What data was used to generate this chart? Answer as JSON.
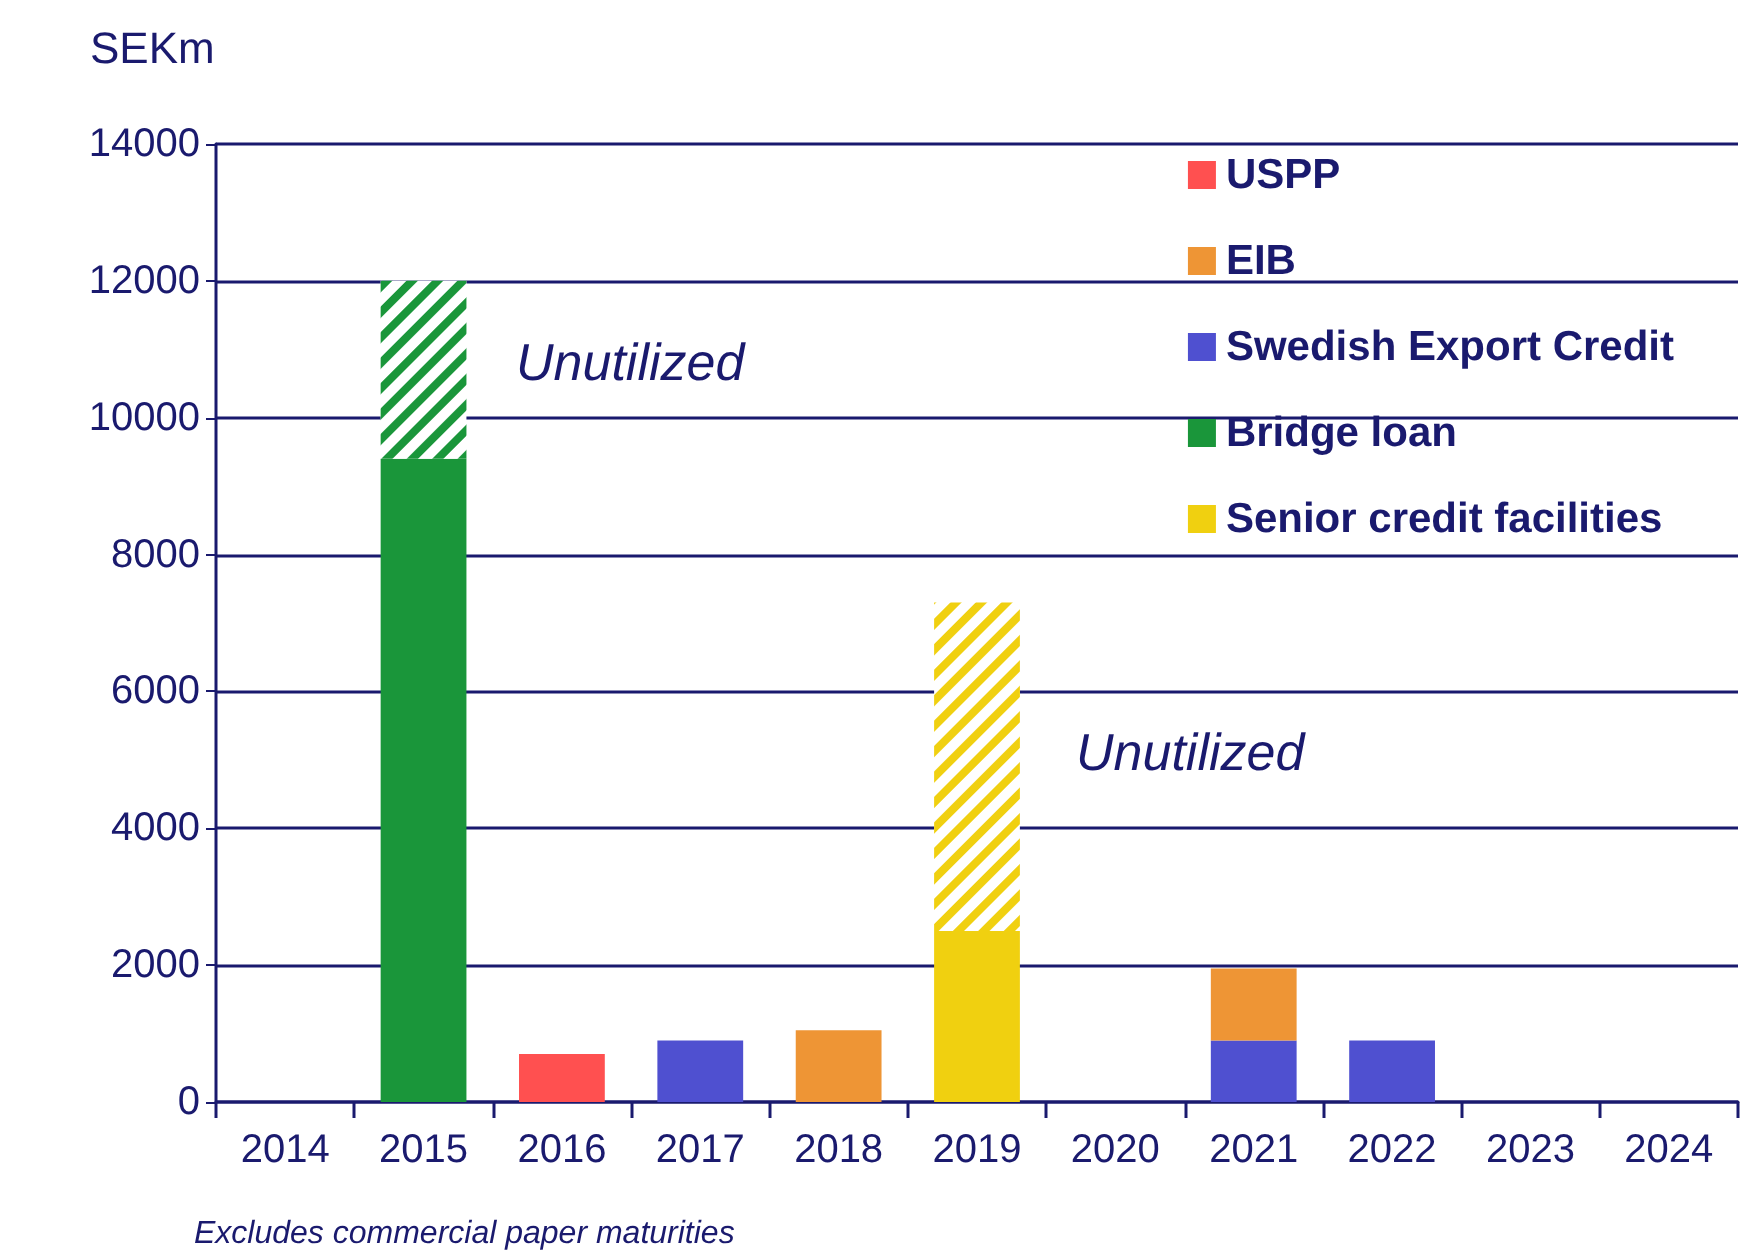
{
  "chart_data": {
    "type": "bar",
    "ylabel": "SEKm",
    "stacked": true,
    "grid": "y",
    "legend": "top right",
    "categories": [
      "2014",
      "2015",
      "2016",
      "2017",
      "2018",
      "2019",
      "2020",
      "2021",
      "2022",
      "2023",
      "2024"
    ],
    "series": [
      {
        "name": "Senior credit facilities",
        "color": "#f0d010",
        "values": [
          null,
          null,
          null,
          null,
          null,
          2500,
          null,
          null,
          null,
          null,
          null
        ]
      },
      {
        "name": "Bridge loan",
        "color": "#1a963a",
        "values": [
          null,
          9400,
          null,
          null,
          null,
          null,
          null,
          null,
          null,
          null,
          null
        ]
      },
      {
        "name": "Swedish Export Credit",
        "color": "#4f50d0",
        "values": [
          null,
          null,
          null,
          900,
          null,
          null,
          null,
          900,
          900,
          null,
          null
        ]
      },
      {
        "name": "EIB",
        "color": "#ee9535",
        "values": [
          null,
          null,
          null,
          null,
          1050,
          null,
          null,
          1050,
          null,
          null,
          null
        ]
      },
      {
        "name": "USPP",
        "color": "#ff5050",
        "values": [
          null,
          null,
          700,
          null,
          null,
          null,
          null,
          null,
          null,
          null,
          null
        ]
      },
      {
        "color": "#1a963a",
        "values": [
          null,
          2600,
          null,
          null,
          null,
          null,
          null,
          null,
          null,
          null,
          null
        ]
      },
      {
        "color": "#f0d010",
        "values": [
          null,
          null,
          null,
          null,
          null,
          4800,
          null,
          null,
          null,
          null,
          null
        ]
      }
    ],
    "ylim": [
      0,
      14000
    ],
    "yticks": [
      0,
      2000,
      4000,
      6000,
      8000,
      10000,
      12000,
      14000
    ],
    "annotations": [
      "Unutilized",
      "Unutilized",
      "Excludes commercial paper maturities"
    ]
  }
}
